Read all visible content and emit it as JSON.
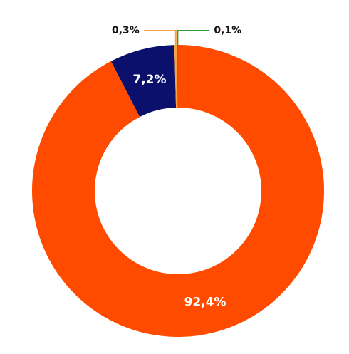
{
  "chart_data": {
    "type": "donut",
    "values": [
      92.4,
      7.2,
      0.3,
      0.1
    ],
    "value_labels": [
      "92,4%",
      "7,2%",
      "0,3%",
      "0,1%"
    ],
    "colors": [
      "#ff4b00",
      "#0a106b",
      "#f4a340",
      "#2e9a3a"
    ]
  }
}
